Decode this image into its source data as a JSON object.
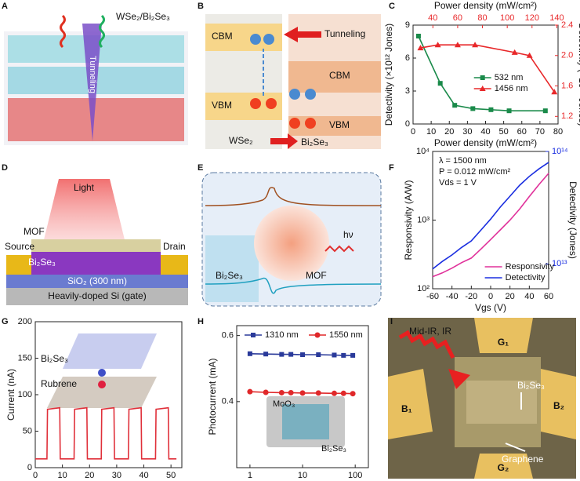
{
  "panels": {
    "A": {
      "letter": "A",
      "labels": [
        "WSe₂/Bi₂Se₃",
        "Tunneling"
      ]
    },
    "B": {
      "letter": "B",
      "labels": [
        "CBM",
        "Tunneling",
        "VBM",
        "CBM",
        "VBM",
        "WSe₂",
        "Bi₂Se₃"
      ]
    },
    "C": {
      "letter": "C"
    },
    "D": {
      "letter": "D",
      "labels": [
        "Light",
        "MOF",
        "Source",
        "Drain",
        "Bi₂Se₃",
        "SiO₂ (300 nm)",
        "Heavily-doped Si (gate)"
      ]
    },
    "E": {
      "letter": "E",
      "labels": [
        "Bi₂Se₃",
        "MOF",
        "hν"
      ]
    },
    "F": {
      "letter": "F"
    },
    "G": {
      "letter": "G",
      "labels": [
        "Bi₂Se₃",
        "Rubrene"
      ]
    },
    "H": {
      "letter": "H",
      "labels": [
        "MoO₃",
        "Bi₂Se₃"
      ]
    },
    "I": {
      "letter": "I",
      "labels": [
        "Mid-IR, IR",
        "G₁",
        "B₁",
        "B₂",
        "Bi₂Se₃",
        "Graphene",
        "G₂"
      ]
    }
  },
  "chart_data": [
    {
      "type": "line",
      "xlabel": "Power density (mW/cm²)",
      "x2label": "Power density (mW/cm²)",
      "ylabel": "Detectivity (×10¹² Jones)",
      "y2label": "Detectivity (×10¹⁰ Jones)",
      "xlim": [
        0,
        80
      ],
      "xticks": [
        0,
        10,
        20,
        30,
        40,
        50,
        60,
        70,
        80
      ],
      "x2lim": [
        24,
        141
      ],
      "x2ticks": [
        40,
        60,
        80,
        100,
        120,
        140
      ],
      "ylim": [
        0,
        9
      ],
      "yticks": [
        0,
        3,
        6,
        9
      ],
      "y2lim": [
        1.1,
        2.4
      ],
      "y2ticks": [
        1.2,
        1.6,
        {
          "value": 2,
          "label": "2.0"
        },
        2.4
      ],
      "axis_color": "#e8282a",
      "legend": "center-right",
      "series": [
        {
          "name": "532 nm",
          "color": "#1a8a4a",
          "marker": "square",
          "x": [
            3,
            15,
            23,
            33,
            43,
            53,
            73
          ],
          "values": [
            8,
            3.7,
            1.7,
            1.4,
            1.3,
            1.2,
            1.2
          ]
        },
        {
          "name": "1456 nm",
          "color": "#e8282a",
          "marker": "triangle",
          "axis": "y2",
          "xaxis": "x2",
          "x": [
            30,
            44,
            60,
            74,
            106,
            118,
            138
          ],
          "values": [
            2.1,
            2.14,
            2.14,
            2.14,
            2.04,
            2.0,
            1.52
          ]
        }
      ]
    },
    {
      "type": "line",
      "xlabel": "Vgs (V)",
      "ylabel": "Responsivity (A/W)",
      "y2label": "Detectivity (Jones)",
      "xlim": [
        -60,
        60
      ],
      "xticks": [
        -60,
        -40,
        -20,
        0,
        20,
        40,
        60
      ],
      "ylog": true,
      "ylim": [
        100,
        10000
      ],
      "yticks": [
        {
          "value": 100,
          "label": "10²"
        },
        {
          "value": 1000,
          "label": "10³"
        },
        {
          "value": 10000,
          "label": "10⁴"
        }
      ],
      "y2log": true,
      "y2lim": [
        6000000000000,
        100000000000000
      ],
      "y2ticks": [
        {
          "value": 10000000000000,
          "label": "10¹³"
        },
        {
          "value": 100000000000000,
          "label": "10¹⁴"
        }
      ],
      "axis_color": "#1a2ee0",
      "legend": "lower-right",
      "annotations": [
        "λ = 1500 nm",
        "P = 0.012 mW/cm²",
        "Vds = 1 V"
      ],
      "series": [
        {
          "name": "Responsivity",
          "color": "#e0309a",
          "x": [
            -60,
            -50,
            -40,
            -30,
            -20,
            -10,
            0,
            10,
            20,
            30,
            40,
            50,
            60
          ],
          "values": [
            150,
            170,
            200,
            240,
            280,
            380,
            520,
            720,
            1000,
            1450,
            2200,
            3300,
            4800
          ]
        },
        {
          "name": "Detectivity",
          "color": "#1a2ee0",
          "axis": "y2",
          "x": [
            -60,
            -50,
            -40,
            -30,
            -20,
            -10,
            0,
            10,
            20,
            30,
            40,
            50,
            60
          ],
          "values": [
            9000000000000,
            10500000000000,
            12000000000000,
            14000000000000,
            16000000000000,
            20000000000000,
            25000000000000,
            32000000000000,
            40000000000000,
            50000000000000,
            60000000000000,
            70000000000000,
            80000000000000
          ]
        }
      ]
    },
    {
      "type": "line",
      "xlabel": "Time (s)",
      "ylabel": "Current (nA)",
      "xlim": [
        0,
        54
      ],
      "xticks": [
        0,
        10,
        20,
        30,
        40,
        50
      ],
      "ylim": [
        0,
        200
      ],
      "yticks": [
        0,
        50,
        100,
        150,
        200
      ],
      "series": [
        {
          "color": "#e0303a",
          "x": [
            0,
            4.3,
            4.5,
            9,
            9.2,
            14.3,
            14.5,
            19,
            19.2,
            24.3,
            24.5,
            29,
            29.2,
            34.3,
            34.5,
            39,
            39.2,
            44.3,
            44.5,
            49,
            49.2,
            52
          ],
          "values": [
            12,
            12,
            80,
            82,
            12,
            12,
            80,
            82,
            12,
            12,
            80,
            82,
            12,
            12,
            80,
            82,
            12,
            12,
            80,
            82,
            12,
            12
          ]
        }
      ]
    },
    {
      "type": "line",
      "xlabel": "Time (days)",
      "ylabel": "Photocurrent (mA)",
      "xlog": true,
      "xlim": [
        0.56,
        178
      ],
      "xticks": [
        1,
        10,
        100
      ],
      "ylim": [
        0.2,
        0.63
      ],
      "yticks": [
        0.4,
        0.6
      ],
      "legend": "upper-center",
      "series": [
        {
          "name": "1310 nm",
          "color": "#2a3a9a",
          "marker": "square",
          "x": [
            1,
            2,
            4,
            6,
            10,
            20,
            40,
            60,
            90
          ],
          "values": [
            0.545,
            0.544,
            0.543,
            0.543,
            0.542,
            0.542,
            0.541,
            0.54,
            0.54
          ]
        },
        {
          "name": "1550 nm",
          "color": "#e0282a",
          "marker": "circle",
          "x": [
            1,
            2,
            4,
            6,
            10,
            20,
            40,
            60,
            90
          ],
          "values": [
            0.43,
            0.428,
            0.427,
            0.427,
            0.426,
            0.426,
            0.425,
            0.425,
            0.424
          ]
        }
      ]
    }
  ]
}
